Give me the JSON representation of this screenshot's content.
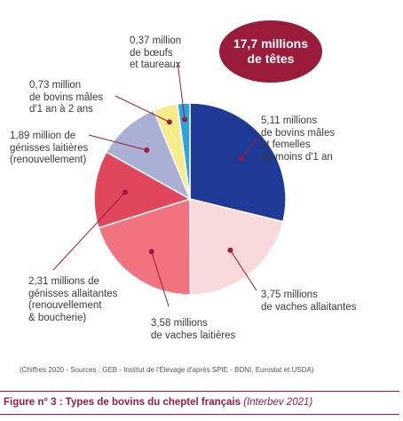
{
  "chart_data": {
    "type": "pie",
    "total_label": "17,7 millions\nde têtes",
    "slices": [
      {
        "label": "5,11 millions\nde bovins mâles\net femelles\nde moins d'1 an",
        "value": 5.11,
        "color": "#1e3a96"
      },
      {
        "label": "3,75 millions\nde vaches allaitantes",
        "value": 3.75,
        "color": "#f8d9dc"
      },
      {
        "label": "3,58 millions\nde vaches laitières",
        "value": 3.58,
        "color": "#f0737f"
      },
      {
        "label": "2,31 millions de\ngénisses allaitantes\n(renouvellement\n& boucherie)",
        "value": 2.31,
        "color": "#e0475c"
      },
      {
        "label": "1,89 million de\ngénisses laitières\n(renouvellement)",
        "value": 1.89,
        "color": "#a9b0d3"
      },
      {
        "label": "0,73 million\nde bovins mâles\nd'1 an à 2 ans",
        "value": 0.73,
        "color": "#f7ec8c"
      },
      {
        "label": "0,37 million\nde bœufs\net taureaux",
        "value": 0.37,
        "color": "#2ba3dc"
      }
    ],
    "source": "(Chiffres 2020 - Sources : GEB - Institut de l'Élevage d'après SPIE - BDNI, Eurostat et USDA)",
    "caption": {
      "bold": "Figure n° 3 : Types de bovins du cheptel français",
      "italic": "(Interbev 2021)"
    }
  },
  "colors": {
    "accent": "#9b1b3b",
    "leader": "#9b1b3b"
  }
}
